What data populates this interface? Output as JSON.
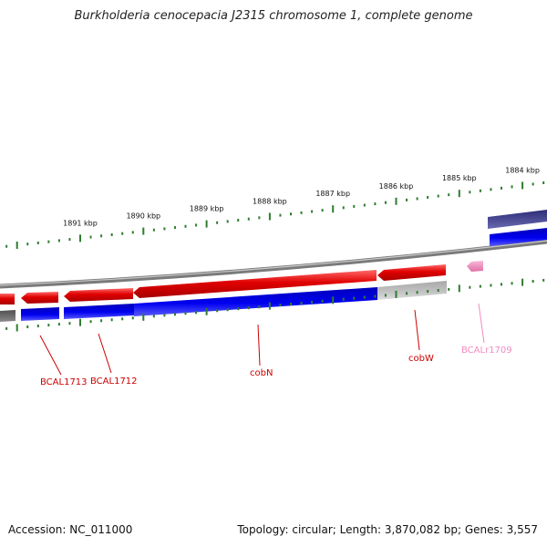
{
  "title": "Burkholderia cenocepacia J2315 chromosome 1, complete genome",
  "footer": {
    "accession": "Accession: NC_011000",
    "summary": "Topology: circular; Length: 3,870,082 bp; Genes: 3,557"
  },
  "colors": {
    "background": "#ffffff",
    "backbone": "#8a8a8a",
    "gene_forward": "#e00000",
    "gene_reverse_track": "#0000e0",
    "gene_gray": "#b8b8b8",
    "gene_dark_gray": "#666666",
    "navy_block": "#3a3a8a",
    "rna": "#f08cc0",
    "tick": "#2e7d2e",
    "label_red": "#cc0000",
    "label_pink": "#f08cc0",
    "tick_label": "#111111"
  },
  "ticks_labels": [
    "1891 kbp",
    "1890 kbp",
    "1889 kbp",
    "1888 kbp",
    "1887 kbp",
    "1886 kbp",
    "1885 kbp",
    "1884 kbp"
  ],
  "genes": [
    {
      "name": "BCAL1713",
      "color": "red"
    },
    {
      "name": "BCAL1712",
      "color": "red"
    },
    {
      "name": "cobN",
      "color": "red"
    },
    {
      "name": "cobW",
      "color": "red"
    },
    {
      "name": "BCALr1709",
      "color": "pink"
    }
  ]
}
